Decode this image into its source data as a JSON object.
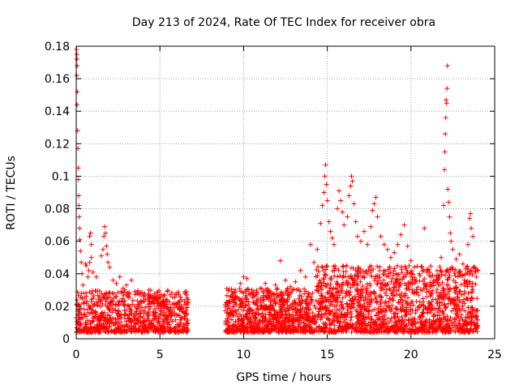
{
  "chart_data": {
    "type": "scatter",
    "title": "Day 213 of 2024, Rate Of TEC Index for receiver obra",
    "xlabel": "GPS time / hours",
    "ylabel": "ROTI / TECUs",
    "xlim": [
      0,
      25
    ],
    "ylim": [
      0,
      0.18
    ],
    "xticks": [
      0,
      5,
      10,
      15,
      20,
      25
    ],
    "yticks": [
      0,
      0.02,
      0.04,
      0.06,
      0.08,
      0.1,
      0.12,
      0.14,
      0.16,
      0.18
    ],
    "xtick_labels": [
      "0",
      "5",
      "10",
      "15",
      "20",
      "25"
    ],
    "ytick_labels": [
      "0",
      "0.02",
      "0.04",
      "0.06",
      "0.08",
      "0.1",
      "0.12",
      "0.14",
      "0.16",
      "0.18"
    ],
    "grid": true,
    "marker": "+",
    "color": "#ff0000",
    "series": [
      {
        "name": "ROTI",
        "points": [
          [
            0.02,
            0.178
          ],
          [
            0.04,
            0.175
          ],
          [
            0.05,
            0.172
          ],
          [
            0.06,
            0.168
          ],
          [
            0.03,
            0.162
          ],
          [
            0.07,
            0.152
          ],
          [
            0.05,
            0.144
          ],
          [
            0.08,
            0.128
          ],
          [
            0.1,
            0.117
          ],
          [
            0.12,
            0.105
          ],
          [
            0.13,
            0.098
          ],
          [
            0.15,
            0.088
          ],
          [
            0.16,
            0.082
          ],
          [
            0.18,
            0.075
          ],
          [
            0.2,
            0.068
          ],
          [
            0.22,
            0.061
          ],
          [
            0.25,
            0.054
          ],
          [
            0.3,
            0.047
          ],
          [
            0.35,
            0.04
          ],
          [
            0.4,
            0.033
          ],
          [
            0.45,
            0.028
          ],
          [
            0.5,
            0.025
          ],
          [
            0.55,
            0.046
          ],
          [
            0.6,
            0.045
          ],
          [
            0.7,
            0.038
          ],
          [
            0.75,
            0.042
          ],
          [
            0.8,
            0.047
          ],
          [
            0.9,
            0.05
          ],
          [
            0.8,
            0.063
          ],
          [
            0.85,
            0.065
          ],
          [
            0.9,
            0.058
          ],
          [
            1.0,
            0.041
          ],
          [
            1.2,
            0.038
          ],
          [
            1.5,
            0.051
          ],
          [
            1.6,
            0.055
          ],
          [
            1.65,
            0.063
          ],
          [
            1.7,
            0.069
          ],
          [
            1.75,
            0.065
          ],
          [
            1.8,
            0.057
          ],
          [
            1.85,
            0.052
          ],
          [
            1.9,
            0.047
          ],
          [
            2.0,
            0.044
          ],
          [
            2.2,
            0.036
          ],
          [
            2.4,
            0.034
          ],
          [
            2.6,
            0.038
          ],
          [
            2.8,
            0.031
          ],
          [
            3.0,
            0.033
          ],
          [
            3.3,
            0.036
          ],
          [
            3.5,
            0.029
          ],
          [
            3.8,
            0.027
          ],
          [
            4.0,
            0.026
          ],
          [
            4.3,
            0.024
          ],
          [
            4.5,
            0.022
          ],
          [
            4.8,
            0.025
          ],
          [
            5.0,
            0.021
          ],
          [
            5.3,
            0.02
          ],
          [
            5.6,
            0.018
          ],
          [
            6.0,
            0.021
          ],
          [
            6.3,
            0.024
          ],
          [
            6.5,
            0.029
          ],
          [
            6.6,
            0.027
          ],
          [
            9.0,
            0.022
          ],
          [
            9.2,
            0.026
          ],
          [
            9.5,
            0.03
          ],
          [
            9.8,
            0.034
          ],
          [
            10.0,
            0.038
          ],
          [
            10.2,
            0.037
          ],
          [
            10.5,
            0.03
          ],
          [
            10.8,
            0.028
          ],
          [
            11.0,
            0.031
          ],
          [
            11.3,
            0.034
          ],
          [
            11.6,
            0.029
          ],
          [
            11.9,
            0.033
          ],
          [
            12.2,
            0.048
          ],
          [
            12.5,
            0.036
          ],
          [
            12.8,
            0.032
          ],
          [
            13.1,
            0.035
          ],
          [
            13.4,
            0.042
          ],
          [
            13.7,
            0.038
          ],
          [
            14.0,
            0.058
          ],
          [
            14.2,
            0.047
          ],
          [
            14.4,
            0.055
          ],
          [
            14.6,
            0.071
          ],
          [
            14.7,
            0.082
          ],
          [
            14.8,
            0.09
          ],
          [
            14.85,
            0.1
          ],
          [
            14.9,
            0.107
          ],
          [
            14.95,
            0.095
          ],
          [
            15.0,
            0.085
          ],
          [
            15.1,
            0.072
          ],
          [
            15.2,
            0.066
          ],
          [
            15.3,
            0.062
          ],
          [
            15.4,
            0.058
          ],
          [
            15.6,
            0.08
          ],
          [
            15.7,
            0.091
          ],
          [
            15.8,
            0.085
          ],
          [
            15.9,
            0.078
          ],
          [
            16.0,
            0.07
          ],
          [
            16.2,
            0.075
          ],
          [
            16.3,
            0.088
          ],
          [
            16.4,
            0.094
          ],
          [
            16.45,
            0.1
          ],
          [
            16.5,
            0.097
          ],
          [
            16.6,
            0.083
          ],
          [
            16.7,
            0.072
          ],
          [
            16.8,
            0.063
          ],
          [
            17.0,
            0.06
          ],
          [
            17.2,
            0.066
          ],
          [
            17.4,
            0.058
          ],
          [
            17.6,
            0.069
          ],
          [
            17.7,
            0.079
          ],
          [
            17.8,
            0.083
          ],
          [
            17.9,
            0.087
          ],
          [
            18.0,
            0.075
          ],
          [
            18.2,
            0.063
          ],
          [
            18.4,
            0.058
          ],
          [
            18.6,
            0.055
          ],
          [
            18.8,
            0.05
          ],
          [
            19.0,
            0.053
          ],
          [
            19.2,
            0.058
          ],
          [
            19.4,
            0.064
          ],
          [
            19.6,
            0.07
          ],
          [
            19.8,
            0.057
          ],
          [
            20.0,
            0.048
          ],
          [
            20.2,
            0.044
          ],
          [
            20.5,
            0.04
          ],
          [
            20.8,
            0.068
          ],
          [
            21.0,
            0.042
          ],
          [
            21.3,
            0.039
          ],
          [
            21.6,
            0.036
          ],
          [
            21.8,
            0.05
          ],
          [
            21.95,
            0.082
          ],
          [
            22.0,
            0.104
          ],
          [
            22.02,
            0.115
          ],
          [
            22.05,
            0.126
          ],
          [
            22.08,
            0.136
          ],
          [
            22.1,
            0.147
          ],
          [
            22.12,
            0.145
          ],
          [
            22.15,
            0.154
          ],
          [
            22.18,
            0.168
          ],
          [
            22.2,
            0.092
          ],
          [
            22.25,
            0.084
          ],
          [
            22.3,
            0.075
          ],
          [
            22.35,
            0.065
          ],
          [
            22.4,
            0.06
          ],
          [
            22.5,
            0.055
          ],
          [
            22.7,
            0.049
          ],
          [
            22.9,
            0.052
          ],
          [
            23.1,
            0.046
          ],
          [
            23.2,
            0.034
          ],
          [
            23.4,
            0.058
          ],
          [
            23.5,
            0.074
          ],
          [
            23.55,
            0.077
          ],
          [
            23.6,
            0.068
          ],
          [
            23.7,
            0.063
          ],
          [
            23.8,
            0.044
          ],
          [
            23.9,
            0.038
          ],
          [
            24.0,
            0.042
          ]
        ]
      }
    ],
    "dense_bands": [
      {
        "x_start": 0.0,
        "x_end": 6.7,
        "y_low": 0.004,
        "y_high": 0.03,
        "count": 820
      },
      {
        "x_start": 8.9,
        "x_end": 14.3,
        "y_low": 0.004,
        "y_high": 0.031,
        "count": 820
      },
      {
        "x_start": 14.3,
        "x_end": 24.0,
        "y_low": 0.004,
        "y_high": 0.045,
        "count": 1500
      }
    ]
  }
}
